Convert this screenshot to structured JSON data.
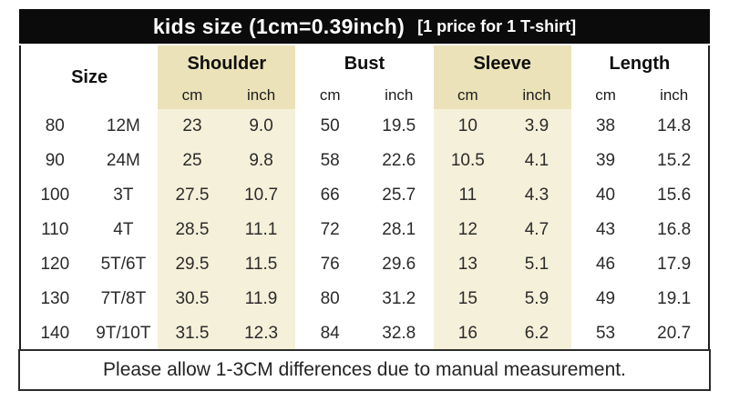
{
  "banner": {
    "main": "kids size (1cm=0.39inch)",
    "note": "[1 price for 1 T-shirt]"
  },
  "colors": {
    "banner_bg": "#0b0b0b",
    "banner_text": "#ffffff",
    "header_highlight": "#ebe2b9",
    "body_highlight": "#f5f0d9",
    "border": "#1f1f1f"
  },
  "table": {
    "size_header": "Size",
    "groups": [
      {
        "label": "Shoulder",
        "highlighted": true
      },
      {
        "label": "Bust",
        "highlighted": false
      },
      {
        "label": "Sleeve",
        "highlighted": true
      },
      {
        "label": "Length",
        "highlighted": false
      }
    ],
    "unit_cm": "cm",
    "unit_inch": "inch",
    "rows": [
      {
        "size": "80",
        "age": "12M",
        "shoulder_cm": "23",
        "shoulder_inch": "9.0",
        "bust_cm": "50",
        "bust_inch": "19.5",
        "sleeve_cm": "10",
        "sleeve_inch": "3.9",
        "length_cm": "38",
        "length_inch": "14.8"
      },
      {
        "size": "90",
        "age": "24M",
        "shoulder_cm": "25",
        "shoulder_inch": "9.8",
        "bust_cm": "58",
        "bust_inch": "22.6",
        "sleeve_cm": "10.5",
        "sleeve_inch": "4.1",
        "length_cm": "39",
        "length_inch": "15.2"
      },
      {
        "size": "100",
        "age": "3T",
        "shoulder_cm": "27.5",
        "shoulder_inch": "10.7",
        "bust_cm": "66",
        "bust_inch": "25.7",
        "sleeve_cm": "11",
        "sleeve_inch": "4.3",
        "length_cm": "40",
        "length_inch": "15.6"
      },
      {
        "size": "110",
        "age": "4T",
        "shoulder_cm": "28.5",
        "shoulder_inch": "11.1",
        "bust_cm": "72",
        "bust_inch": "28.1",
        "sleeve_cm": "12",
        "sleeve_inch": "4.7",
        "length_cm": "43",
        "length_inch": "16.8"
      },
      {
        "size": "120",
        "age": "5T/6T",
        "shoulder_cm": "29.5",
        "shoulder_inch": "11.5",
        "bust_cm": "76",
        "bust_inch": "29.6",
        "sleeve_cm": "13",
        "sleeve_inch": "5.1",
        "length_cm": "46",
        "length_inch": "17.9"
      },
      {
        "size": "130",
        "age": "7T/8T",
        "shoulder_cm": "30.5",
        "shoulder_inch": "11.9",
        "bust_cm": "80",
        "bust_inch": "31.2",
        "sleeve_cm": "15",
        "sleeve_inch": "5.9",
        "length_cm": "49",
        "length_inch": "19.1"
      },
      {
        "size": "140",
        "age": "9T/10T",
        "shoulder_cm": "31.5",
        "shoulder_inch": "12.3",
        "bust_cm": "84",
        "bust_inch": "32.8",
        "sleeve_cm": "16",
        "sleeve_inch": "6.2",
        "length_cm": "53",
        "length_inch": "20.7"
      }
    ]
  },
  "footer": {
    "note": "Please allow 1-3CM differences due to manual measurement."
  }
}
